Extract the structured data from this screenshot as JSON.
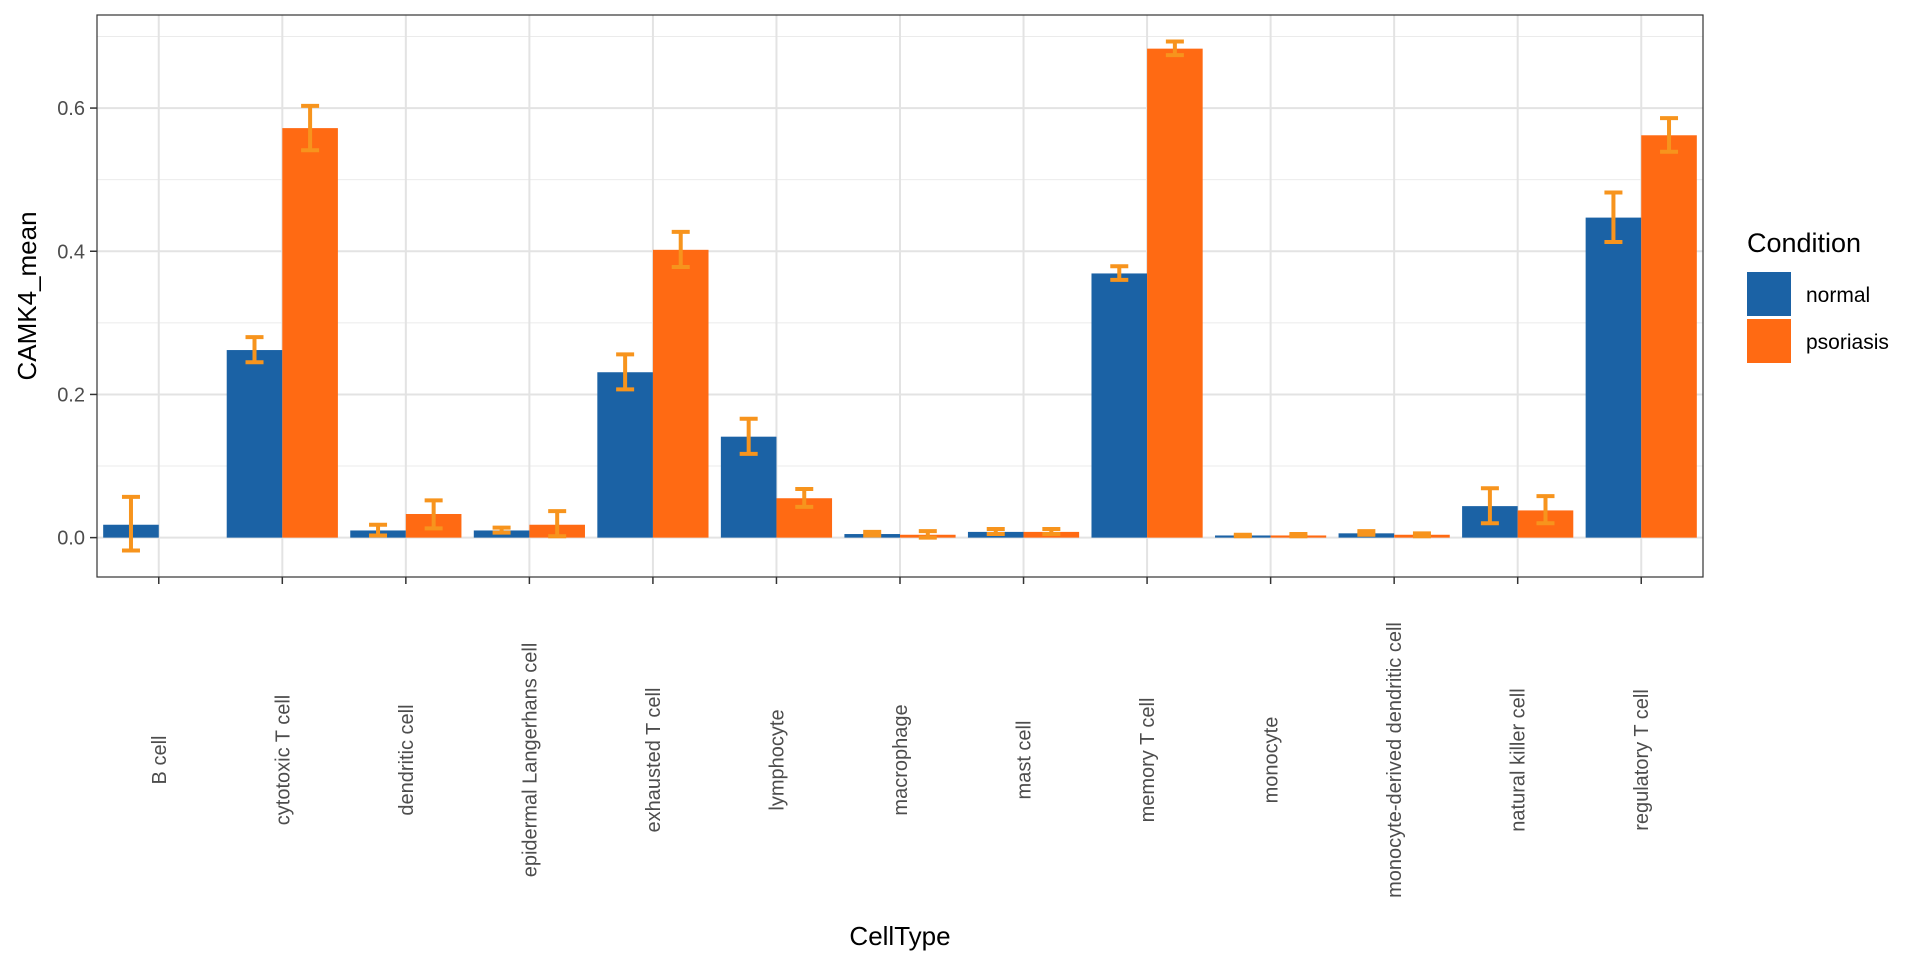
{
  "chart_data": {
    "type": "bar",
    "title": "",
    "xlabel": "CellType",
    "ylabel": "CAMK4_mean",
    "ylim": [
      -0.055,
      0.73
    ],
    "yticks": [
      0.0,
      0.2,
      0.4,
      0.6
    ],
    "ytick_labels": [
      "0.0",
      "0.2",
      "0.4",
      "0.6"
    ],
    "grid": true,
    "x_tick_rotation": "vertical",
    "categories": [
      "B cell",
      "cytotoxic T cell",
      "dendritic cell",
      "epidermal Langerhans cell",
      "exhausted T cell",
      "lymphocyte",
      "macrophage",
      "mast cell",
      "memory T cell",
      "monocyte",
      "monocyte-derived dendritic cell",
      "natural killer cell",
      "regulatory T cell"
    ],
    "series": [
      {
        "name": "normal",
        "color": "#1b62a5",
        "values": [
          0.018,
          0.262,
          0.01,
          0.01,
          0.231,
          0.141,
          0.005,
          0.008,
          0.369,
          0.003,
          0.006,
          0.044,
          0.447
        ],
        "error_low": [
          -0.018,
          0.245,
          0.003,
          0.007,
          0.207,
          0.117,
          0.003,
          0.005,
          0.36,
          0.002,
          0.004,
          0.02,
          0.413
        ],
        "error_high": [
          0.057,
          0.28,
          0.018,
          0.014,
          0.256,
          0.166,
          0.008,
          0.012,
          0.379,
          0.004,
          0.009,
          0.069,
          0.482
        ]
      },
      {
        "name": "psoriasis",
        "color": "#ff6a13",
        "values": [
          null,
          0.572,
          0.033,
          0.018,
          0.402,
          0.055,
          0.004,
          0.008,
          0.683,
          0.003,
          0.004,
          0.038,
          0.562
        ],
        "error_low": [
          null,
          0.541,
          0.013,
          0.002,
          0.378,
          0.043,
          0.0,
          0.005,
          0.674,
          0.002,
          0.002,
          0.02,
          0.539
        ],
        "error_high": [
          null,
          0.603,
          0.052,
          0.037,
          0.427,
          0.068,
          0.009,
          0.012,
          0.693,
          0.005,
          0.006,
          0.058,
          0.586
        ]
      }
    ],
    "error_bar_color": "#f7941d",
    "legend": {
      "title": "Condition",
      "position": "right",
      "entries": [
        "normal",
        "psoriasis"
      ]
    }
  }
}
